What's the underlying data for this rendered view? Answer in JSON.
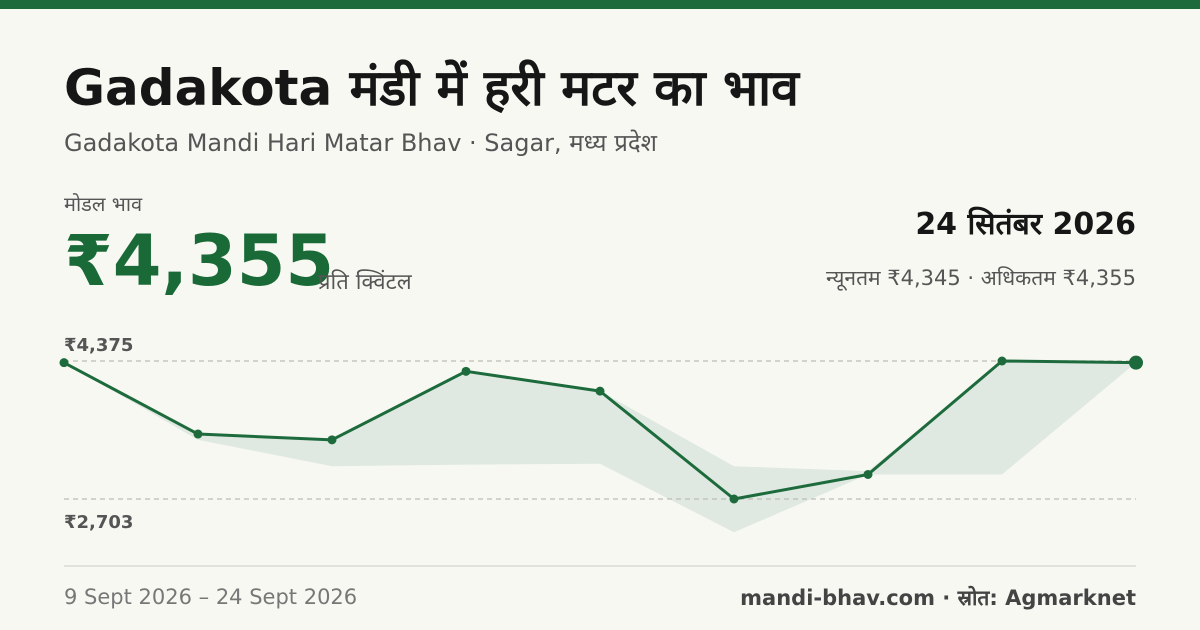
{
  "header": {
    "title": "Gadakota मंडी में हरी मटर का भाव",
    "subtitle": "Gadakota Mandi Hari Matar Bhav · Sagar, मध्य प्रदेश"
  },
  "price": {
    "label": "मोडल भाव",
    "value": "₹4,355",
    "unit": "प्रति क्विंटल"
  },
  "report": {
    "date": "24 सितंबर 2026",
    "minmax": "न्यूनतम ₹4,345 · अधिकतम ₹4,355"
  },
  "footer": {
    "date_range": "9 Sept 2026 – 24 Sept 2026",
    "credit": "mandi-bhav.com · स्रोत: Agmarknet"
  },
  "colors": {
    "accent": "#1d6b3c",
    "band_fill": "#dfe9e1",
    "guide_line": "#bdbdb5"
  },
  "chart_data": {
    "type": "line",
    "guide_labels": [
      "₹4,375",
      "₹2,703"
    ],
    "ylim": [
      2703,
      4375
    ],
    "points": 9,
    "series": [
      {
        "values": [
          4355,
          3490,
          3420,
          4250,
          4010,
          2703,
          3000,
          4375,
          4355
        ]
      }
    ],
    "band": {
      "upper": [
        4355,
        3490,
        3420,
        4250,
        4010,
        3100,
        3040,
        4375,
        4355
      ],
      "lower": [
        4355,
        3420,
        3100,
        3120,
        3130,
        2300,
        3000,
        3000,
        4355
      ]
    },
    "grid": false
  }
}
